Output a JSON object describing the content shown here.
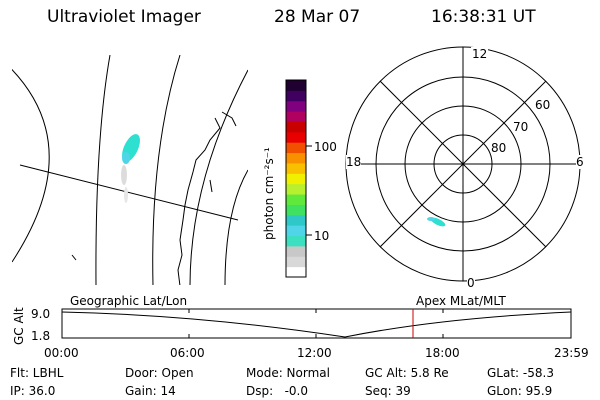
{
  "header": {
    "title": "Ultraviolet Imager",
    "date": "28 Mar 07",
    "time": "16:38:31 UT"
  },
  "colorbar": {
    "label": "photon cm⁻²s⁻¹",
    "ticks": [
      "100",
      "10"
    ]
  },
  "polar_plot": {
    "mlt_labels": [
      "12",
      "18",
      "6",
      "0"
    ],
    "lat_labels": [
      "60",
      "70",
      "80"
    ]
  },
  "timeline": {
    "left_title": "Geographic Lat/Lon",
    "right_title": "Apex MLat/MLT",
    "y_axis_label": "GC Alt",
    "y_ticks": [
      "9.0",
      "1.8"
    ],
    "x_ticks": [
      "00:00",
      "06:00",
      "12:00",
      "18:00",
      "23:59"
    ],
    "marker_color": "#cc0000"
  },
  "status": {
    "filter": "Flt: LBHL",
    "ip": "IP: 36.0",
    "door": "Door: Open",
    "gain": "Gain: 14",
    "mode": "Mode: Normal",
    "dsp": "Dsp:   -0.0",
    "gc_alt": "GC Alt: 5.8 Re",
    "seq": "Seq: 39",
    "glat": "GLat: -58.3",
    "glon": "GLon: 95.9"
  },
  "colors": {
    "aurora": "#2ee0d0",
    "colorbar": [
      "#ffffff",
      "#d8d8d8",
      "#c8c8c8",
      "#3ce0c0",
      "#50d4e8",
      "#2ec8c8",
      "#40e060",
      "#60e83a",
      "#b8f030",
      "#f0f000",
      "#f8c000",
      "#f89000",
      "#f05000",
      "#e80000",
      "#c80000",
      "#b00060",
      "#800080",
      "#400060",
      "#200030"
    ]
  }
}
